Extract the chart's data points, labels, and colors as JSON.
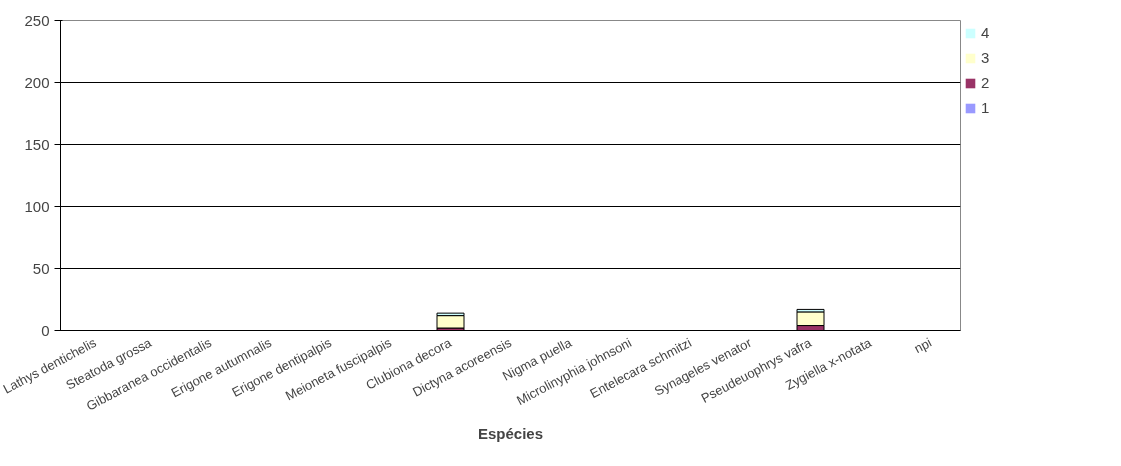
{
  "chart_data": {
    "type": "bar",
    "stacked": true,
    "xlabel": "Espécies",
    "categories": [
      "Lathys dentichelis",
      "Steatoda grossa",
      "Gibbaranea occidentalis",
      "Erigone autumnalis",
      "Erigone dentipalpis",
      "Meioneta fuscipalpis",
      "Clubiona decora",
      "Dictyna acoreensis",
      "Nigma puella",
      "Microlinyphia johnsoni",
      "Entelecara schmitzi",
      "Synageles venator",
      "Pseudeuophrys vafra",
      "Zygiella x-notata",
      "npi"
    ],
    "series": [
      {
        "name": "1",
        "color": "#9999ff",
        "values": [
          0,
          0,
          0,
          0,
          0,
          0,
          0,
          0,
          0,
          0,
          0,
          0,
          0,
          0,
          0
        ]
      },
      {
        "name": "2",
        "color": "#993366",
        "values": [
          0,
          0,
          0,
          0,
          0,
          0,
          2,
          0,
          0,
          0,
          0,
          0,
          4,
          0,
          0
        ]
      },
      {
        "name": "3",
        "color": "#ffffcc",
        "values": [
          0,
          0,
          0,
          0,
          0,
          0,
          10,
          0,
          0,
          0,
          0,
          0,
          11,
          0,
          0
        ]
      },
      {
        "name": "4",
        "color": "#ccffff",
        "values": [
          0,
          0,
          0,
          0,
          0,
          0,
          2,
          0,
          0,
          0,
          0,
          0,
          2,
          0,
          0
        ]
      }
    ],
    "ylim": [
      0,
      250
    ],
    "yticks": [
      0,
      50,
      100,
      150,
      200,
      250
    ],
    "grid": "y",
    "legend": "right"
  }
}
